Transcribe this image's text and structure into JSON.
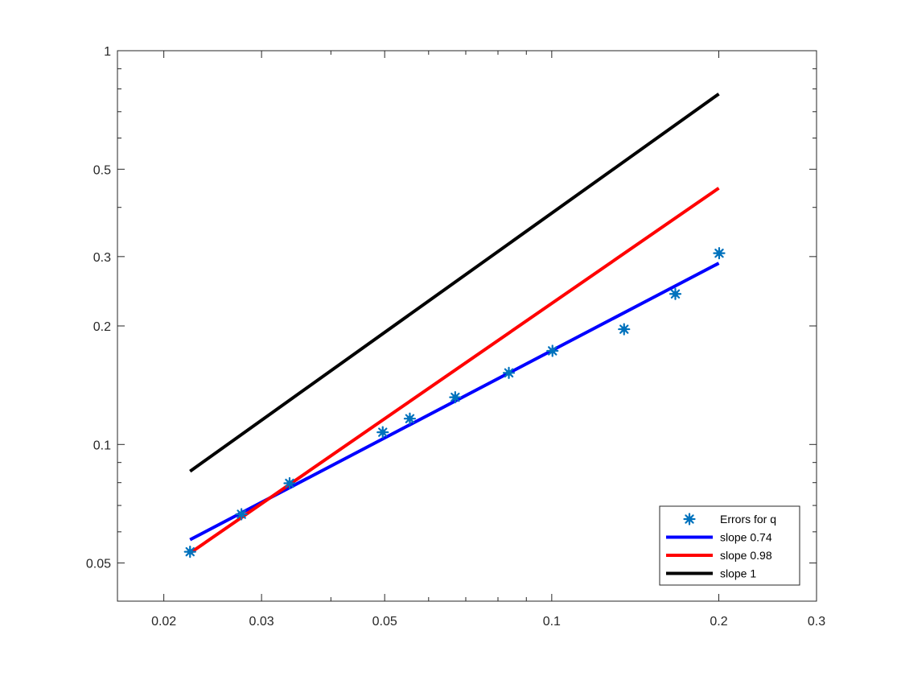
{
  "chart_data": {
    "type": "scatter",
    "xscale": "log",
    "yscale": "log",
    "xlim": [
      0.0165,
      0.3
    ],
    "ylim": [
      0.04,
      1
    ],
    "grid": false,
    "legend_position": "bottom-right",
    "x_ticks": [
      {
        "value": 0.02,
        "label": "0.02"
      },
      {
        "value": 0.03,
        "label": "0.03"
      },
      {
        "value": 0.05,
        "label": "0.05"
      },
      {
        "value": 0.1,
        "label": "0.1"
      },
      {
        "value": 0.2,
        "label": "0.2"
      },
      {
        "value": 0.3,
        "label": "0.3"
      }
    ],
    "y_ticks": [
      {
        "value": 0.05,
        "label": "0.05"
      },
      {
        "value": 0.1,
        "label": "0.1"
      },
      {
        "value": 0.2,
        "label": "0.2"
      },
      {
        "value": 0.3,
        "label": "0.3"
      },
      {
        "value": 0.5,
        "label": "0.5"
      },
      {
        "value": 1,
        "label": "1"
      }
    ],
    "x_minor_ticks": [
      0.04,
      0.06,
      0.07,
      0.08,
      0.09
    ],
    "y_minor_ticks": [
      0.06,
      0.07,
      0.08,
      0.09,
      0.4,
      0.6,
      0.7,
      0.8,
      0.9
    ],
    "series": [
      {
        "name": "Errors for q",
        "kind": "markers",
        "color": "#0072BD",
        "points": [
          {
            "x": 0.0223,
            "y": 0.0534
          },
          {
            "x": 0.0276,
            "y": 0.0665
          },
          {
            "x": 0.0337,
            "y": 0.0797
          },
          {
            "x": 0.0496,
            "y": 0.1074
          },
          {
            "x": 0.0555,
            "y": 0.1163
          },
          {
            "x": 0.067,
            "y": 0.1318
          },
          {
            "x": 0.0837,
            "y": 0.152
          },
          {
            "x": 0.1003,
            "y": 0.1729
          },
          {
            "x": 0.135,
            "y": 0.1962
          },
          {
            "x": 0.167,
            "y": 0.2411
          },
          {
            "x": 0.2003,
            "y": 0.306
          }
        ]
      },
      {
        "name": "slope 0.74",
        "kind": "line",
        "color": "#0000FF",
        "points": [
          {
            "x": 0.0223,
            "y": 0.0573
          },
          {
            "x": 0.2,
            "y": 0.2886
          }
        ]
      },
      {
        "name": "slope 0.98",
        "kind": "line",
        "color": "#FF0000",
        "points": [
          {
            "x": 0.0223,
            "y": 0.053
          },
          {
            "x": 0.2,
            "y": 0.4478
          }
        ]
      },
      {
        "name": "slope 1",
        "kind": "line",
        "color": "#000000",
        "points": [
          {
            "x": 0.0223,
            "y": 0.0855
          },
          {
            "x": 0.2,
            "y": 0.7767
          }
        ]
      }
    ]
  }
}
